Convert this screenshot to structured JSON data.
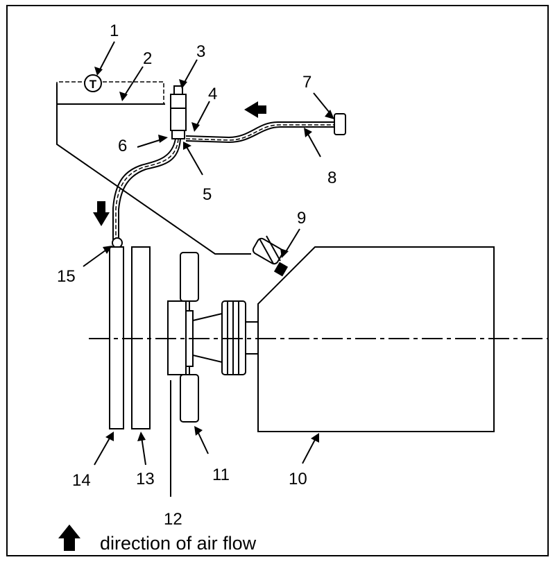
{
  "labels": {
    "l1": "1",
    "l2": "2",
    "l3": "3",
    "l4": "4",
    "l5": "5",
    "l6": "6",
    "l7": "7",
    "l8": "8",
    "l9": "9",
    "l10": "10",
    "l11": "11",
    "l12": "12",
    "l13": "13",
    "l14": "14",
    "l15": "15"
  },
  "legend": {
    "caption": "direction of air flow",
    "icon": "arrow-up-icon"
  },
  "colors": {
    "line": "#000000",
    "background": "#ffffff"
  }
}
